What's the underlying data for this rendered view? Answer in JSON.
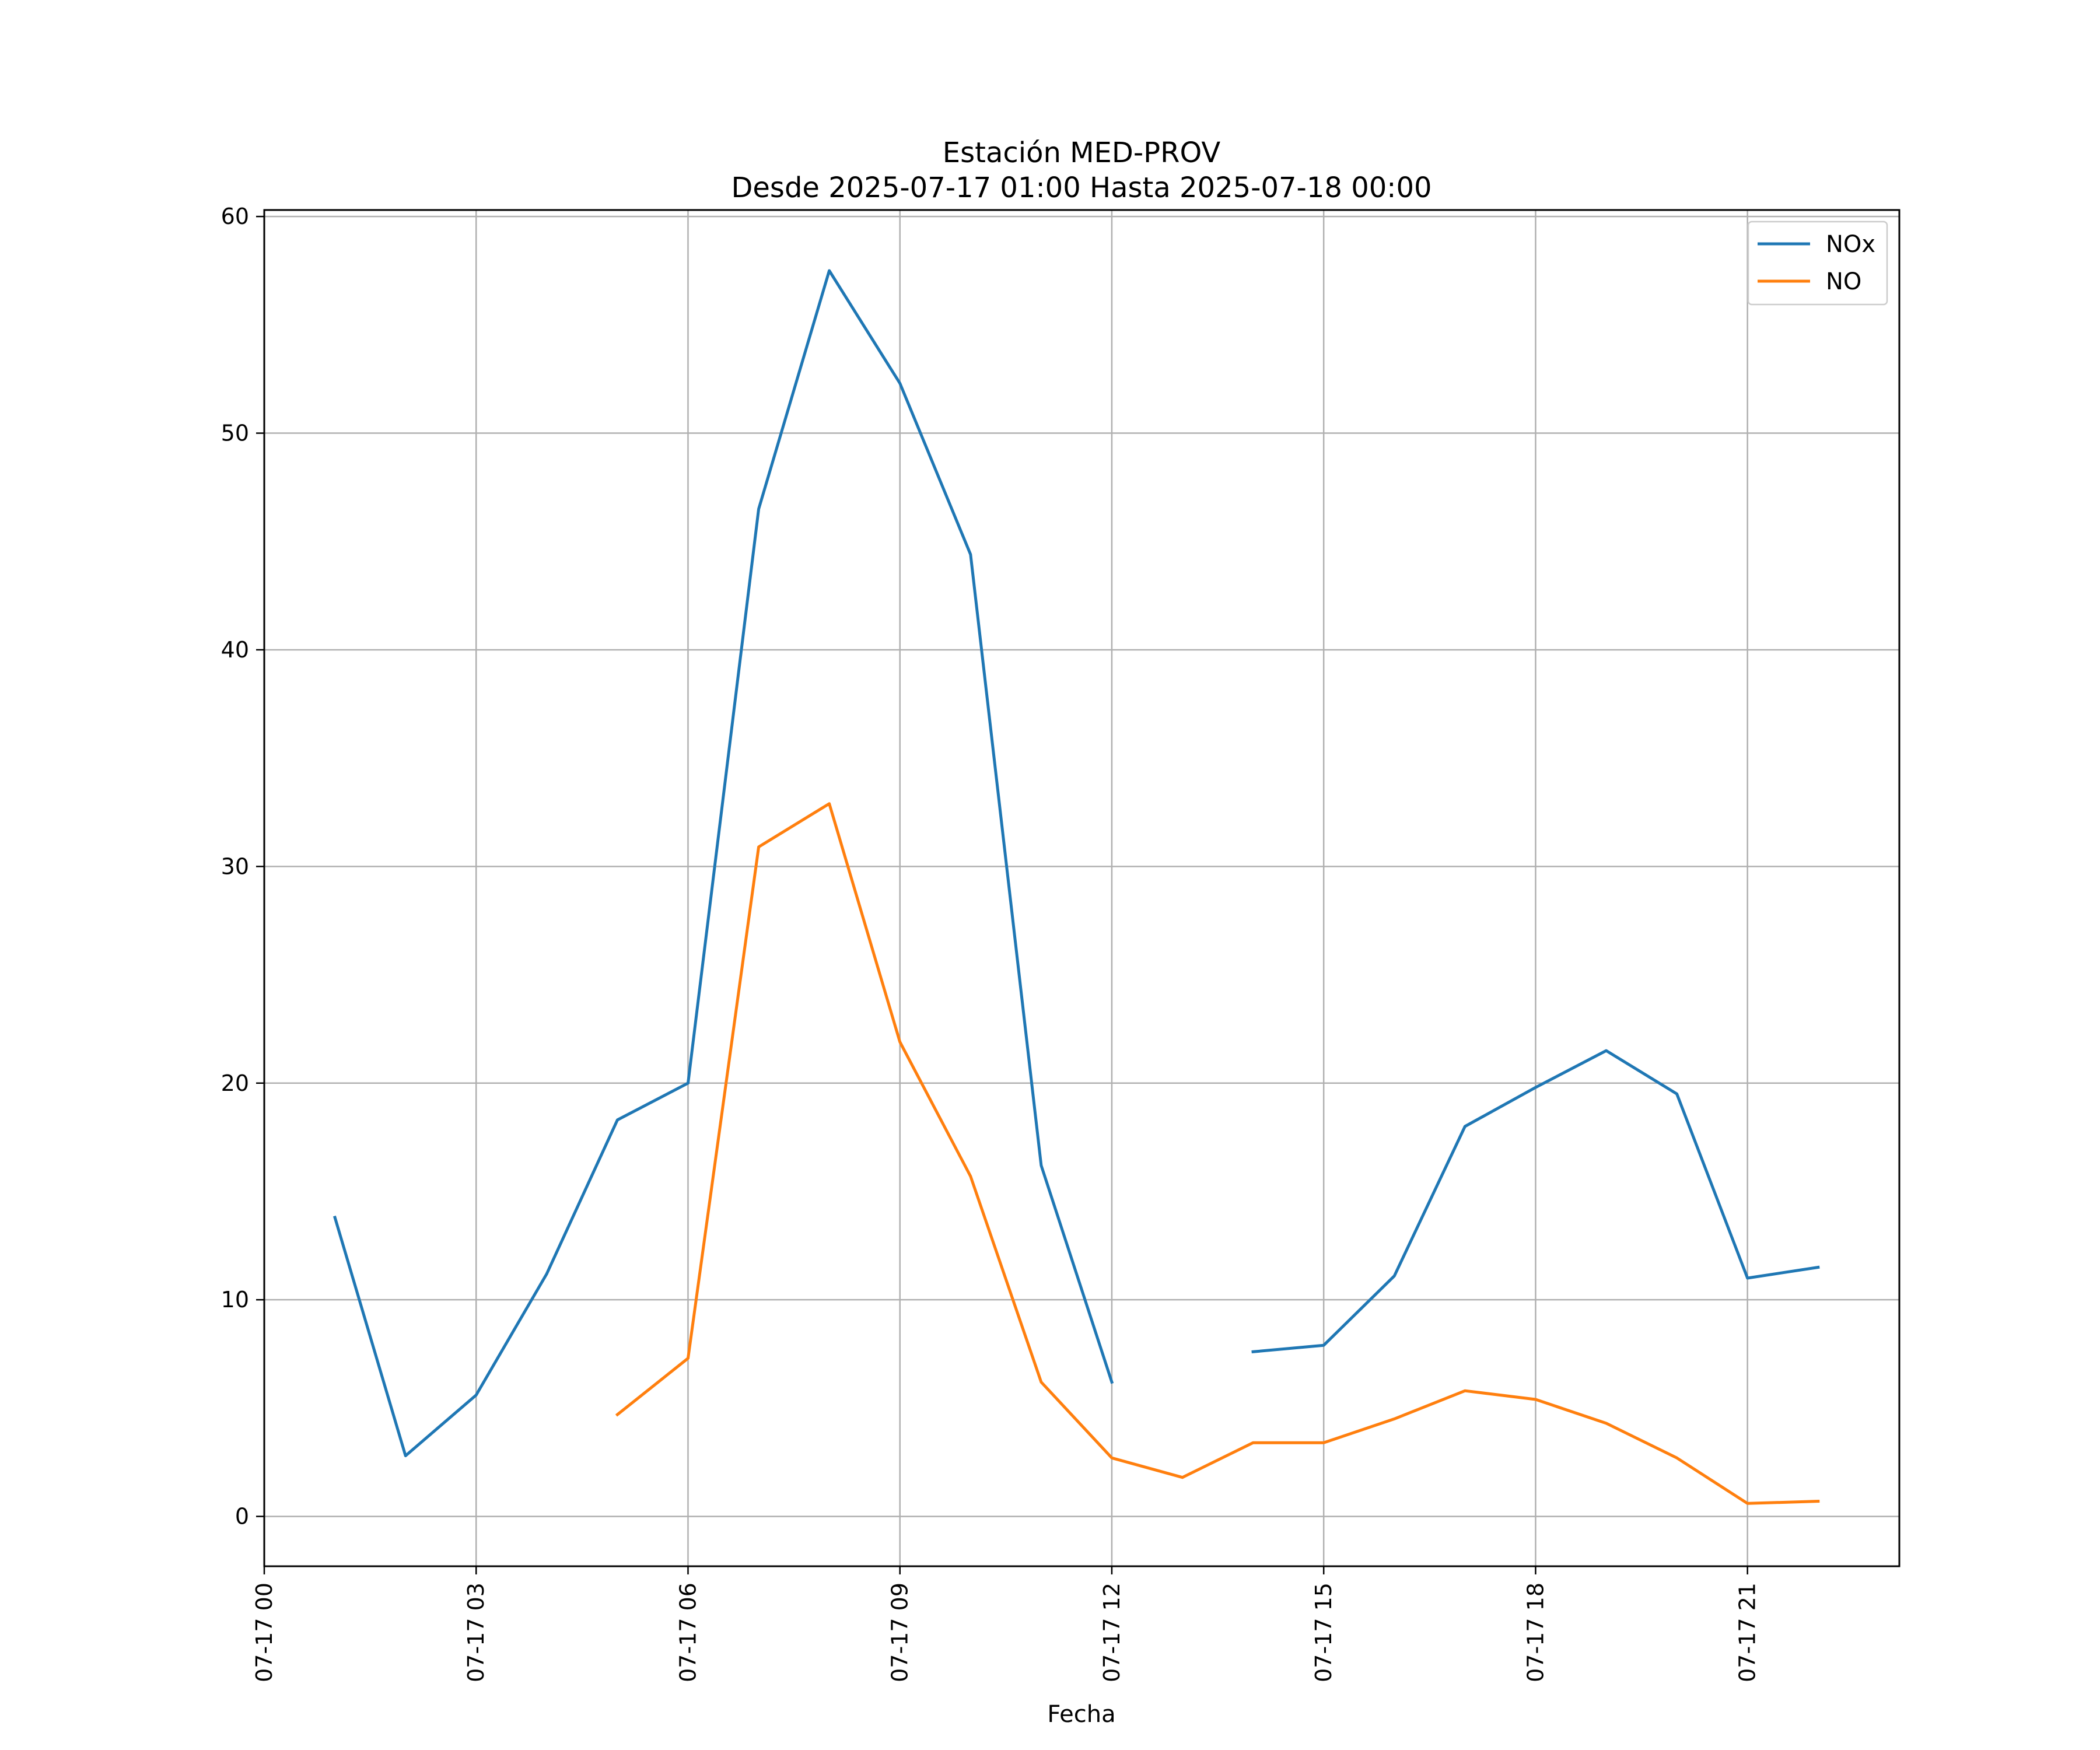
{
  "chart_data": {
    "type": "line",
    "title": "Estación MED-PROV",
    "subtitle": "Desde 2025-07-17 01:00 Hasta 2025-07-18 00:00",
    "xlabel": "Fecha",
    "ylabel": "",
    "xlim": [
      "2025-07-17 00:00",
      "2025-07-17 23:09"
    ],
    "ylim": [
      -2.3,
      60.3
    ],
    "grid": true,
    "legend_position": "top-right",
    "x_tick_labels": [
      "07-17 00",
      "07-17 03",
      "07-17 06",
      "07-17 09",
      "07-17 12",
      "07-17 15",
      "07-17 18",
      "07-17 21"
    ],
    "x_tick_hours": [
      0,
      3,
      6,
      9,
      12,
      15,
      18,
      21
    ],
    "y_ticks": [
      0,
      10,
      20,
      30,
      40,
      50,
      60
    ],
    "x_hours": [
      1,
      2,
      3,
      4,
      5,
      6,
      7,
      8,
      9,
      10,
      11,
      12,
      13,
      14,
      15,
      16,
      17,
      18,
      19,
      20,
      21,
      22
    ],
    "series": [
      {
        "name": "NOx",
        "color": "#1f77b4",
        "values": [
          13.8,
          2.8,
          5.6,
          11.2,
          18.3,
          20.0,
          46.5,
          57.5,
          52.3,
          44.4,
          16.2,
          6.2,
          null,
          7.6,
          7.9,
          11.1,
          18.0,
          19.8,
          21.5,
          19.5,
          11.0,
          11.5
        ]
      },
      {
        "name": "NO",
        "color": "#ff7f0e",
        "values": [
          null,
          null,
          null,
          null,
          4.7,
          7.3,
          30.9,
          32.9,
          21.9,
          15.7,
          6.2,
          2.7,
          1.8,
          3.4,
          3.4,
          4.5,
          5.8,
          5.4,
          4.3,
          2.7,
          0.6,
          0.7
        ]
      }
    ]
  }
}
